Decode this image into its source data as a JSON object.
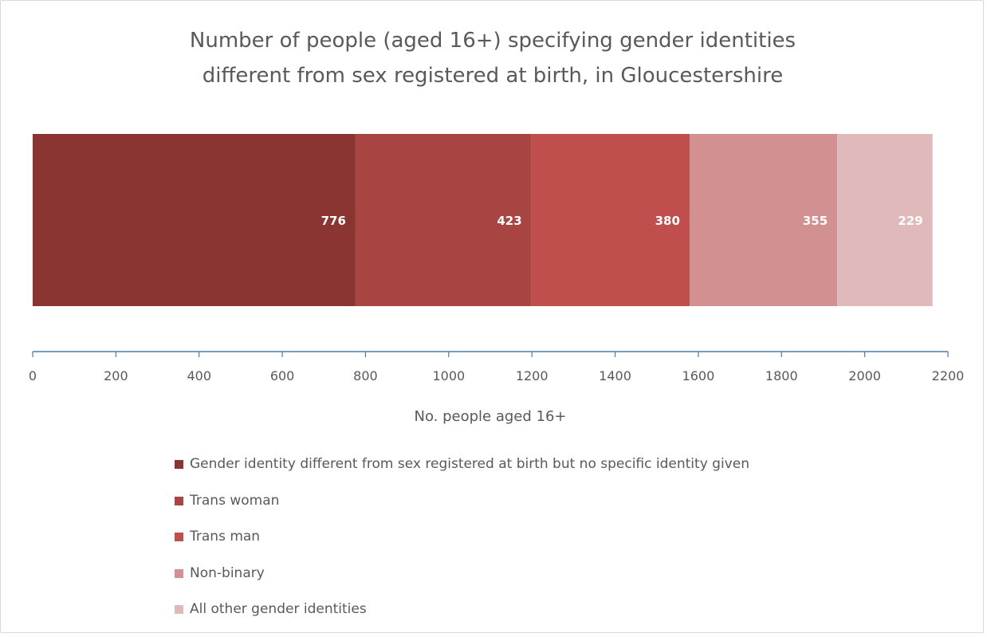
{
  "chart_data": {
    "type": "bar",
    "orientation": "horizontal",
    "stacked": true,
    "title": "Number of people (aged 16+) specifying gender identities different from sex registered at birth, in Gloucestershire",
    "title_lines": [
      "Number of people (aged 16+) specifying gender identities",
      "different from sex registered at birth, in Gloucestershire"
    ],
    "xlabel": "No. people aged 16+",
    "ylabel": "",
    "xlim": [
      0,
      2200
    ],
    "x_ticks": [
      0,
      200,
      400,
      600,
      800,
      1000,
      1200,
      1400,
      1600,
      1800,
      2000,
      2200
    ],
    "grid": false,
    "legend_position": "bottom",
    "series": [
      {
        "name": "Gender identity different from sex registered at birth but no specific identity given",
        "values": [
          776
        ],
        "color": "#8b3532"
      },
      {
        "name": "Trans woman",
        "values": [
          423
        ],
        "color": "#a84542"
      },
      {
        "name": "Trans man",
        "values": [
          380
        ],
        "color": "#bf4e4c"
      },
      {
        "name": "Non-binary",
        "values": [
          355
        ],
        "color": "#d29090"
      },
      {
        "name": "All other gender identities",
        "values": [
          229
        ],
        "color": "#e0baba"
      }
    ],
    "data_label_color": "#ffffff",
    "axis_color": "#4a7ba7"
  }
}
